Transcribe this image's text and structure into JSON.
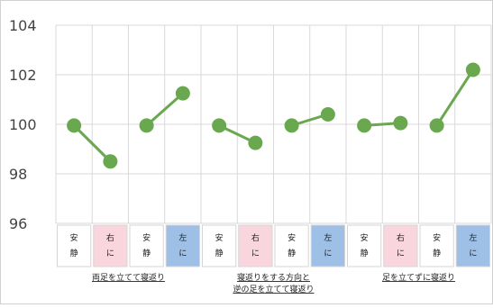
{
  "chart_data": {
    "type": "line",
    "title": "",
    "xlabel": "",
    "ylabel": "",
    "ylim": [
      96,
      104
    ],
    "y_ticks": [
      "96",
      "98",
      "100",
      "102",
      "104"
    ],
    "grid": true,
    "legend": "none",
    "colors": {
      "series": "#6aa84f",
      "gridline": "#d9d9d9",
      "cell_rest": "#ffffff",
      "cell_right": "#f9d6de",
      "cell_left": "#9fc0e6"
    },
    "categories": [
      {
        "text": "安静",
        "kind": "rest"
      },
      {
        "text": "右に",
        "kind": "right"
      },
      {
        "text": "安静",
        "kind": "rest"
      },
      {
        "text": "左に",
        "kind": "left"
      },
      {
        "text": "安静",
        "kind": "rest"
      },
      {
        "text": "右に",
        "kind": "right"
      },
      {
        "text": "安静",
        "kind": "rest"
      },
      {
        "text": "左に",
        "kind": "left"
      },
      {
        "text": "安静",
        "kind": "rest"
      },
      {
        "text": "右に",
        "kind": "right"
      },
      {
        "text": "安静",
        "kind": "rest"
      },
      {
        "text": "左に",
        "kind": "left"
      }
    ],
    "segments": [
      {
        "from": 0,
        "to": 1,
        "values": [
          99.95,
          98.5
        ]
      },
      {
        "from": 2,
        "to": 3,
        "values": [
          99.95,
          101.25
        ]
      },
      {
        "from": 4,
        "to": 5,
        "values": [
          99.95,
          99.25
        ]
      },
      {
        "from": 6,
        "to": 7,
        "values": [
          99.95,
          100.4
        ]
      },
      {
        "from": 8,
        "to": 9,
        "values": [
          99.95,
          100.05
        ]
      },
      {
        "from": 10,
        "to": 11,
        "values": [
          99.95,
          102.2
        ]
      }
    ],
    "groups": [
      {
        "span": [
          0,
          3
        ],
        "lines": [
          "両足を立てて寝返り"
        ]
      },
      {
        "span": [
          4,
          7
        ],
        "lines": [
          "寝返りをする方向と",
          "逆の足を立てて寝返り"
        ]
      },
      {
        "span": [
          8,
          11
        ],
        "lines": [
          "足を立てずに寝返り"
        ]
      }
    ]
  }
}
